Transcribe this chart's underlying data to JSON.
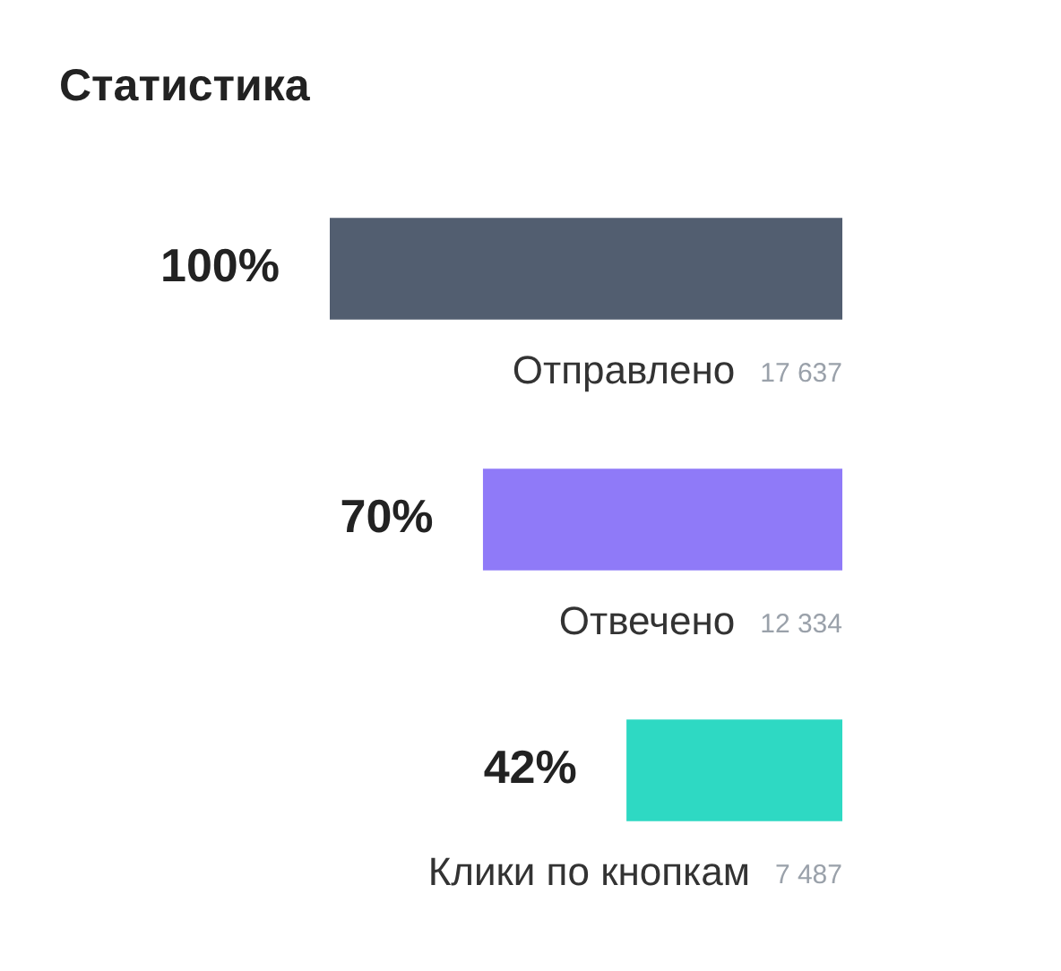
{
  "chart_data": {
    "type": "bar",
    "orientation": "horizontal",
    "title": "Статистика",
    "categories": [
      "Отправлено",
      "Отвечено",
      "Клики по кнопкам"
    ],
    "values": [
      100,
      70,
      42
    ],
    "colors": [
      "#525e70",
      "#8f7af8",
      "#2ed9c3"
    ],
    "value_labels": [
      "100%",
      "70%",
      "42%"
    ],
    "annotations": [
      "17 637",
      "12 334",
      "7 487"
    ]
  }
}
